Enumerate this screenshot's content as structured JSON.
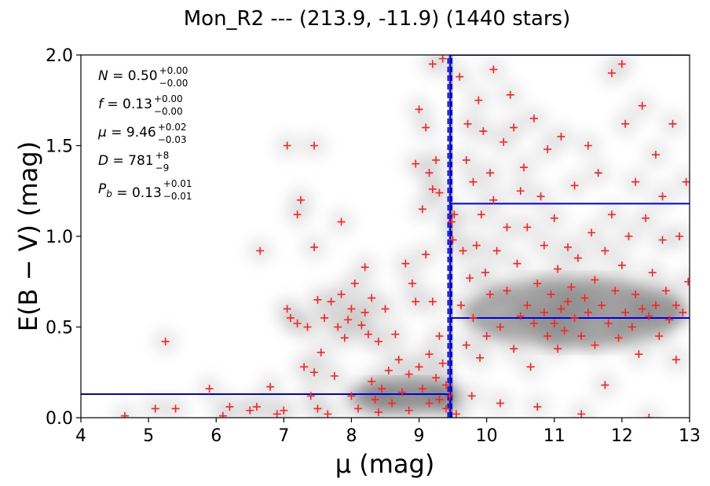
{
  "chart_data": {
    "type": "scatter",
    "title": "Mon_R2 --- (213.9, -11.9) (1440 stars)",
    "xlabel": "μ (mag)",
    "ylabel": "E(B − V) (mag)",
    "xlim": [
      4,
      13
    ],
    "ylim": [
      0,
      2
    ],
    "x_ticks": [
      "4",
      "5",
      "6",
      "7",
      "8",
      "9",
      "10",
      "11",
      "12",
      "13"
    ],
    "y_ticks": [
      "0.0",
      "0.5",
      "1.0",
      "1.5",
      "2.0"
    ],
    "grid": false,
    "background": "grayscale density map of stellar extinction vs distance modulus",
    "marker": {
      "symbol": "+",
      "color": "#ff2020"
    },
    "line_color": "#0000dd",
    "fit_lines": {
      "foreground_extinction": 0.13,
      "cloud_distance_modulus": 9.46,
      "cloud_distance_upper": 9.48,
      "cloud_distance_lower": 9.43,
      "background_extinction": 0.55,
      "background_extinction_upper": 1.18,
      "density_peak_mu": 9.45
    },
    "annotations": [
      {
        "symbol": "N",
        "value": "0.50",
        "plus": "+0.00",
        "minus": "−0.00"
      },
      {
        "symbol": "f",
        "value": "0.13",
        "plus": "+0.00",
        "minus": "−0.00"
      },
      {
        "symbol": "μ",
        "value": "9.46",
        "plus": "+0.02",
        "minus": "−0.03"
      },
      {
        "symbol": "D",
        "value": "781",
        "plus": "+8",
        "minus": "−9"
      },
      {
        "symbol": "P_b",
        "value": "0.13",
        "plus": "+0.01",
        "minus": "−0.01"
      }
    ],
    "points_count_note": "approx. 1440 stars shown",
    "points": [
      [
        4.65,
        0.01
      ],
      [
        5.1,
        0.05
      ],
      [
        5.25,
        0.42
      ],
      [
        5.4,
        0.05
      ],
      [
        5.9,
        0.16
      ],
      [
        6.1,
        0.01
      ],
      [
        6.2,
        0.06
      ],
      [
        6.5,
        0.04
      ],
      [
        6.6,
        0.06
      ],
      [
        6.65,
        0.92
      ],
      [
        6.8,
        0.17
      ],
      [
        6.9,
        0.02
      ],
      [
        7.0,
        0.04
      ],
      [
        7.05,
        0.6
      ],
      [
        7.05,
        1.5
      ],
      [
        7.1,
        0.55
      ],
      [
        7.2,
        0.52
      ],
      [
        7.2,
        1.12
      ],
      [
        7.25,
        1.2
      ],
      [
        7.3,
        0.28
      ],
      [
        7.35,
        0.5
      ],
      [
        7.4,
        0.12
      ],
      [
        7.45,
        0.94
      ],
      [
        7.45,
        1.5
      ],
      [
        7.45,
        0.25
      ],
      [
        7.5,
        0.65
      ],
      [
        7.5,
        0.05
      ],
      [
        7.55,
        0.36
      ],
      [
        7.6,
        0.55
      ],
      [
        7.65,
        0.02
      ],
      [
        7.7,
        0.64
      ],
      [
        7.75,
        0.23
      ],
      [
        7.8,
        0.5
      ],
      [
        7.85,
        1.08
      ],
      [
        7.85,
        0.68
      ],
      [
        7.9,
        0.44
      ],
      [
        7.95,
        0.54
      ],
      [
        8.0,
        0.6
      ],
      [
        8.0,
        0.12
      ],
      [
        8.05,
        0.74
      ],
      [
        8.1,
        0.05
      ],
      [
        8.15,
        0.51
      ],
      [
        8.2,
        0.58
      ],
      [
        8.2,
        0.83
      ],
      [
        8.25,
        0.46
      ],
      [
        8.3,
        0.66
      ],
      [
        8.3,
        0.2
      ],
      [
        8.35,
        0.1
      ],
      [
        8.4,
        0.42
      ],
      [
        8.4,
        0.03
      ],
      [
        8.45,
        0.16
      ],
      [
        8.5,
        0.6
      ],
      [
        8.55,
        0.26
      ],
      [
        8.6,
        0.08
      ],
      [
        8.65,
        0.46
      ],
      [
        8.7,
        0.32
      ],
      [
        8.75,
        0.14
      ],
      [
        8.8,
        0.85
      ],
      [
        8.85,
        0.04
      ],
      [
        8.85,
        0.24
      ],
      [
        8.9,
        0.74
      ],
      [
        8.95,
        0.64
      ],
      [
        8.95,
        1.4
      ],
      [
        9.0,
        0.28
      ],
      [
        9.0,
        1.7
      ],
      [
        9.05,
        0.16
      ],
      [
        9.05,
        1.15
      ],
      [
        9.1,
        0.9
      ],
      [
        9.1,
        1.6
      ],
      [
        9.15,
        0.35
      ],
      [
        9.15,
        0.08
      ],
      [
        9.15,
        1.35
      ],
      [
        9.2,
        1.95
      ],
      [
        9.2,
        1.26
      ],
      [
        9.2,
        0.64
      ],
      [
        9.25,
        0.22
      ],
      [
        9.25,
        1.42
      ],
      [
        9.3,
        0.1
      ],
      [
        9.3,
        1.24
      ],
      [
        9.3,
        0.45
      ],
      [
        9.35,
        1.98
      ],
      [
        9.35,
        0.3
      ],
      [
        9.4,
        0.05
      ],
      [
        9.4,
        0.18
      ],
      [
        9.45,
        0.12
      ],
      [
        9.48,
        1.08
      ],
      [
        9.5,
        0.98
      ],
      [
        9.52,
        1.12
      ],
      [
        9.55,
        0.02
      ],
      [
        9.6,
        1.88
      ],
      [
        9.62,
        0.62
      ],
      [
        9.65,
        0.92
      ],
      [
        9.7,
        1.42
      ],
      [
        9.7,
        0.4
      ],
      [
        9.72,
        1.62
      ],
      [
        9.75,
        0.77
      ],
      [
        9.78,
        0.12
      ],
      [
        9.8,
        1.3
      ],
      [
        9.8,
        0.55
      ],
      [
        9.85,
        0.95
      ],
      [
        9.88,
        1.75
      ],
      [
        9.9,
        0.33
      ],
      [
        9.92,
        1.12
      ],
      [
        9.95,
        1.58
      ],
      [
        9.98,
        0.8
      ],
      [
        10.0,
        0.45
      ],
      [
        10.05,
        1.35
      ],
      [
        10.05,
        0.68
      ],
      [
        10.1,
        1.2
      ],
      [
        10.1,
        1.92
      ],
      [
        10.15,
        0.92
      ],
      [
        10.2,
        0.5
      ],
      [
        10.2,
        0.08
      ],
      [
        10.25,
        1.52
      ],
      [
        10.3,
        1.05
      ],
      [
        10.3,
        0.7
      ],
      [
        10.35,
        1.78
      ],
      [
        10.4,
        0.38
      ],
      [
        10.4,
        1.6
      ],
      [
        10.45,
        0.85
      ],
      [
        10.5,
        1.25
      ],
      [
        10.5,
        0.56
      ],
      [
        10.55,
        1.38
      ],
      [
        10.6,
        0.62
      ],
      [
        10.6,
        1.05
      ],
      [
        10.65,
        0.28
      ],
      [
        10.7,
        1.65
      ],
      [
        10.7,
        0.52
      ],
      [
        10.75,
        0.74
      ],
      [
        10.75,
        0.06
      ],
      [
        10.8,
        1.22
      ],
      [
        10.85,
        0.58
      ],
      [
        10.85,
        0.95
      ],
      [
        10.9,
        0.45
      ],
      [
        10.9,
        1.48
      ],
      [
        10.95,
        0.68
      ],
      [
        11.0,
        0.52
      ],
      [
        11.0,
        1.1
      ],
      [
        11.05,
        0.82
      ],
      [
        11.05,
        0.38
      ],
      [
        11.1,
        0.6
      ],
      [
        11.1,
        1.55
      ],
      [
        11.15,
        0.48
      ],
      [
        11.2,
        0.94
      ],
      [
        11.2,
        0.64
      ],
      [
        11.25,
        0.72
      ],
      [
        11.3,
        0.55
      ],
      [
        11.3,
        1.28
      ],
      [
        11.35,
        0.88
      ],
      [
        11.4,
        0.45
      ],
      [
        11.4,
        0.02
      ],
      [
        11.45,
        0.66
      ],
      [
        11.5,
        1.5
      ],
      [
        11.5,
        0.58
      ],
      [
        11.55,
        1.02
      ],
      [
        11.6,
        0.76
      ],
      [
        11.6,
        0.4
      ],
      [
        11.65,
        1.35
      ],
      [
        11.7,
        0.62
      ],
      [
        11.75,
        0.92
      ],
      [
        11.75,
        0.18
      ],
      [
        11.8,
        0.52
      ],
      [
        11.85,
        1.12
      ],
      [
        11.85,
        1.9
      ],
      [
        11.9,
        0.7
      ],
      [
        11.95,
        0.44
      ],
      [
        12.0,
        1.95
      ],
      [
        12.0,
        0.84
      ],
      [
        12.05,
        1.62
      ],
      [
        12.05,
        0.58
      ],
      [
        12.1,
        1.0
      ],
      [
        12.15,
        0.5
      ],
      [
        12.2,
        1.3
      ],
      [
        12.2,
        0.68
      ],
      [
        12.25,
        0.35
      ],
      [
        12.3,
        1.72
      ],
      [
        12.3,
        0.6
      ],
      [
        12.35,
        1.1
      ],
      [
        12.4,
        0.56
      ],
      [
        12.4,
        0.0
      ],
      [
        12.45,
        0.8
      ],
      [
        12.5,
        1.45
      ],
      [
        12.5,
        0.62
      ],
      [
        12.55,
        0.45
      ],
      [
        12.6,
        1.22
      ],
      [
        12.6,
        0.98
      ],
      [
        12.65,
        0.7
      ],
      [
        12.7,
        0.54
      ],
      [
        12.75,
        1.62
      ],
      [
        12.8,
        0.62
      ],
      [
        12.8,
        0.32
      ],
      [
        12.85,
        1.0
      ],
      [
        12.9,
        0.58
      ],
      [
        12.95,
        1.3
      ],
      [
        12.98,
        0.75
      ]
    ]
  }
}
